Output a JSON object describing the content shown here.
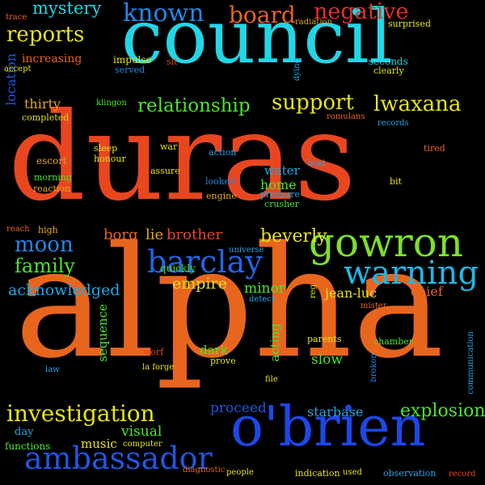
{
  "words": [
    {
      "text": "duras",
      "color": "#e8461f"
    },
    {
      "text": "alpha",
      "color": "#e8651e"
    },
    {
      "text": "council",
      "color": "#22d6e6"
    },
    {
      "text": "o'brien",
      "color": "#1c48e8"
    },
    {
      "text": "gowron",
      "color": "#7ddf2a"
    },
    {
      "text": "barclay",
      "color": "#2266e8"
    },
    {
      "text": "warning",
      "color": "#22b6e6"
    },
    {
      "text": "ambassador",
      "color": "#2255e0"
    },
    {
      "text": "investigation",
      "color": "#e6e31c"
    },
    {
      "text": "known",
      "color": "#2288e8"
    },
    {
      "text": "board",
      "color": "#e8631e"
    },
    {
      "text": "negative",
      "color": "#e82e2e"
    },
    {
      "text": "reports",
      "color": "#e6e31c"
    },
    {
      "text": "mystery",
      "color": "#22d6e6"
    },
    {
      "text": "lwaxana",
      "color": "#e6e31c"
    },
    {
      "text": "support",
      "color": "#e6e31c"
    },
    {
      "text": "relationship",
      "color": "#4ce52a"
    },
    {
      "text": "family",
      "color": "#4ce52a"
    },
    {
      "text": "moon",
      "color": "#2288e8"
    },
    {
      "text": "beverly",
      "color": "#e6e31c"
    },
    {
      "text": "empire",
      "color": "#e6e31c"
    },
    {
      "text": "explosion",
      "color": "#4ce52a"
    },
    {
      "text": "acknowledged",
      "color": "#22a6e6"
    },
    {
      "text": "location",
      "color": "#2255e0"
    },
    {
      "text": "increasing",
      "color": "#e8631e"
    },
    {
      "text": "thirty",
      "color": "#e6a81c"
    },
    {
      "text": "borg",
      "color": "#e8631e"
    },
    {
      "text": "lie",
      "color": "#e6a81c"
    },
    {
      "text": "brother",
      "color": "#e8461f"
    },
    {
      "text": "water",
      "color": "#22a6e6"
    },
    {
      "text": "home",
      "color": "#4ce52a"
    },
    {
      "text": "minor",
      "color": "#4ce52a"
    },
    {
      "text": "jean-luc",
      "color": "#e6e31c"
    },
    {
      "text": "chief",
      "color": "#e8631e"
    },
    {
      "text": "sequence",
      "color": "#4ce52a"
    },
    {
      "text": "acting",
      "color": "#4ce52a"
    },
    {
      "text": "slow",
      "color": "#4ce52a"
    },
    {
      "text": "dark",
      "color": "#4ce52a"
    },
    {
      "text": "proceed",
      "color": "#2255e0"
    },
    {
      "text": "starbase",
      "color": "#22a6e6"
    },
    {
      "text": "visual",
      "color": "#4ce52a"
    },
    {
      "text": "music",
      "color": "#e6e31c"
    },
    {
      "text": "day",
      "color": "#22a6e6"
    },
    {
      "text": "functions",
      "color": "#4ce52a"
    },
    {
      "text": "trace",
      "color": "#e8631e"
    },
    {
      "text": "radiation",
      "color": "#e6a81c"
    },
    {
      "text": "surprised",
      "color": "#e6e31c"
    },
    {
      "text": "accept",
      "color": "#e6e31c"
    },
    {
      "text": "impulse",
      "color": "#e6e31c"
    },
    {
      "text": "served",
      "color": "#2288e8"
    },
    {
      "text": "sit",
      "color": "#e8461f"
    },
    {
      "text": "dying",
      "color": "#22a6e6"
    },
    {
      "text": "seconds",
      "color": "#22d6e6"
    },
    {
      "text": "clearly",
      "color": "#e6e31c"
    },
    {
      "text": "completed",
      "color": "#e6e31c"
    },
    {
      "text": "klingon",
      "color": "#4ce52a"
    },
    {
      "text": "romulans",
      "color": "#e8631e"
    },
    {
      "text": "records",
      "color": "#22a6e6"
    },
    {
      "text": "escort",
      "color": "#e6a81c"
    },
    {
      "text": "sleep",
      "color": "#e6e31c"
    },
    {
      "text": "honour",
      "color": "#e6e31c"
    },
    {
      "text": "war",
      "color": "#e6e31c"
    },
    {
      "text": "action",
      "color": "#22a6e6"
    },
    {
      "text": "lead",
      "color": "#22a6e6"
    },
    {
      "text": "tired",
      "color": "#e8631e"
    },
    {
      "text": "morning",
      "color": "#4ce52a"
    },
    {
      "text": "reaction",
      "color": "#e6a81c"
    },
    {
      "text": "assure",
      "color": "#e6e31c"
    },
    {
      "text": "looked",
      "color": "#2288e8"
    },
    {
      "text": "engine",
      "color": "#e6a81c"
    },
    {
      "text": "pressure",
      "color": "#22a6e6"
    },
    {
      "text": "crusher",
      "color": "#4ce52a"
    },
    {
      "text": "bit",
      "color": "#e6e31c"
    },
    {
      "text": "reach",
      "color": "#e8631e"
    },
    {
      "text": "high",
      "color": "#e6a81c"
    },
    {
      "text": "quickly",
      "color": "#4ce52a"
    },
    {
      "text": "universe",
      "color": "#22a6e6"
    },
    {
      "text": "reg",
      "color": "#e6e31c"
    },
    {
      "text": "mister",
      "color": "#e8631e"
    },
    {
      "text": "detect",
      "color": "#22a6e6"
    },
    {
      "text": "parents",
      "color": "#e6e31c"
    },
    {
      "text": "chamber",
      "color": "#4ce52a"
    },
    {
      "text": "worf",
      "color": "#e8461f"
    },
    {
      "text": "law",
      "color": "#22a6e6"
    },
    {
      "text": "la forge",
      "color": "#e6e31c"
    },
    {
      "text": "prove",
      "color": "#e6e31c"
    },
    {
      "text": "broken",
      "color": "#2288e8"
    },
    {
      "text": "communication",
      "color": "#22a6e6"
    },
    {
      "text": "file",
      "color": "#e6e31c"
    },
    {
      "text": "computer",
      "color": "#e6e31c"
    },
    {
      "text": "diagnostic",
      "color": "#e8631e"
    },
    {
      "text": "people",
      "color": "#e6e31c"
    },
    {
      "text": "indication",
      "color": "#e6e31c"
    },
    {
      "text": "used",
      "color": "#e6e31c"
    },
    {
      "text": "observation",
      "color": "#22a6e6"
    },
    {
      "text": "record",
      "color": "#e8461f"
    }
  ]
}
